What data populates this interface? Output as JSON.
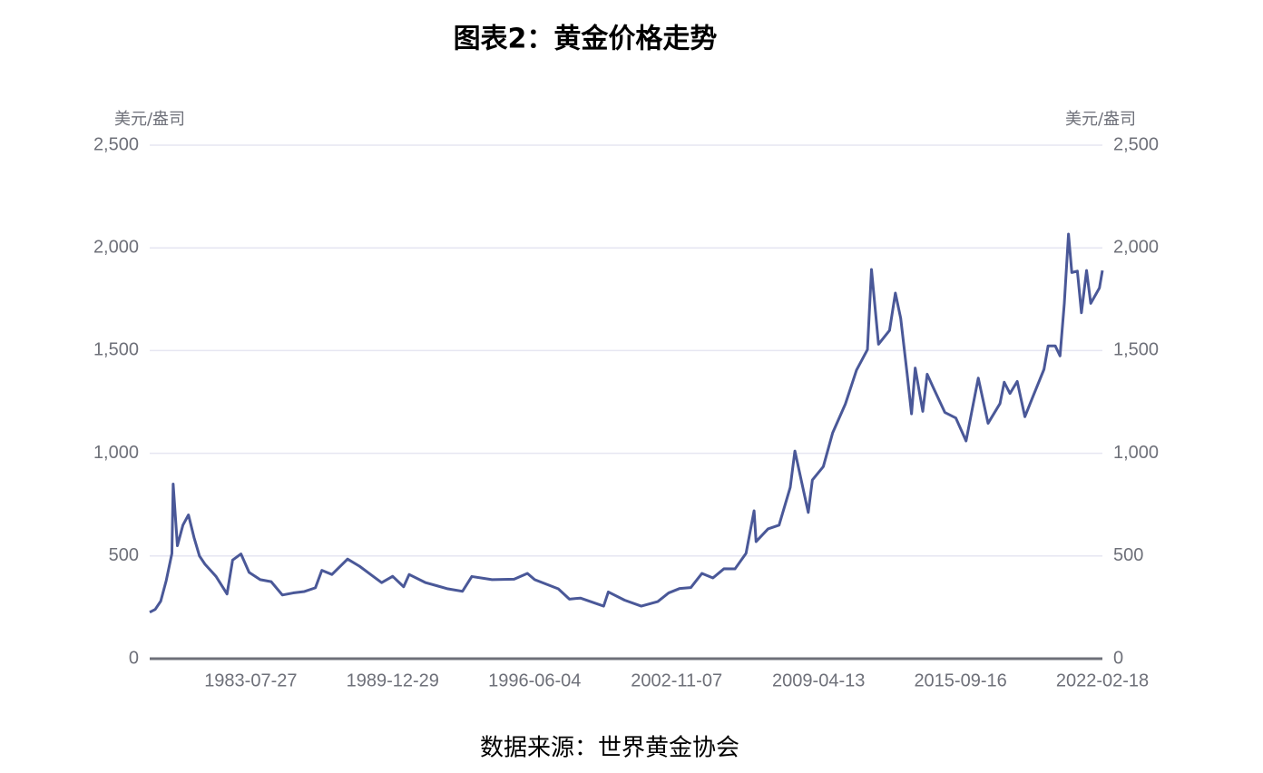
{
  "chart_data": {
    "type": "line",
    "title": "图表2：黄金价格走势",
    "y_label": "美元/盎司",
    "y2_label": "美元/盎司",
    "source": "数据来源：世界黄金协会",
    "x": [
      "1978-12-29",
      "1979-03-30",
      "1979-06-29",
      "1979-09-28",
      "1979-12-31",
      "1980-01-21",
      "1980-03-31",
      "1980-06-30",
      "1980-09-30",
      "1980-12-31",
      "1981-03-31",
      "1981-06-30",
      "1981-09-30",
      "1981-12-31",
      "1982-06-30",
      "1982-09-30",
      "1983-02-15",
      "1983-06-30",
      "1983-12-30",
      "1984-06-29",
      "1984-12-31",
      "1985-06-28",
      "1985-12-31",
      "1986-06-30",
      "1986-10-15",
      "1987-03-31",
      "1987-12-14",
      "1988-06-30",
      "1988-12-30",
      "1989-06-30",
      "1989-12-29",
      "1990-06-29",
      "1990-09-28",
      "1991-06-28",
      "1991-12-31",
      "1992-06-30",
      "1993-02-26",
      "1993-07-30",
      "1994-06-30",
      "1995-06-30",
      "1996-02-05",
      "1996-06-04",
      "1997-06-30",
      "1997-12-31",
      "1998-06-30",
      "1999-07-20",
      "1999-10-05",
      "2000-06-30",
      "2001-04-02",
      "2001-12-31",
      "2002-06-28",
      "2002-12-31",
      "2003-06-30",
      "2003-12-31",
      "2004-06-30",
      "2004-12-31",
      "2005-06-30",
      "2005-12-30",
      "2006-05-12",
      "2006-06-14",
      "2006-12-29",
      "2007-06-29",
      "2007-12-31",
      "2008-03-17",
      "2008-10-24",
      "2008-12-31",
      "2009-06-30",
      "2009-12-02",
      "2010-06-30",
      "2010-12-31",
      "2011-06-30",
      "2011-09-05",
      "2011-12-30",
      "2012-06-29",
      "2012-10-04",
      "2012-12-31",
      "2013-04-15",
      "2013-06-28",
      "2013-08-28",
      "2013-12-31",
      "2014-03-14",
      "2014-06-30",
      "2014-12-31",
      "2015-06-30",
      "2015-12-17",
      "2016-07-06",
      "2016-12-15",
      "2017-06-30",
      "2017-09-08",
      "2017-12-12",
      "2018-04-11",
      "2018-08-16",
      "2018-12-31",
      "2019-06-28",
      "2019-09-04",
      "2019-12-31",
      "2020-03-19",
      "2020-05-29",
      "2020-08-06",
      "2020-09-30",
      "2020-12-31",
      "2021-03-08",
      "2021-06-01",
      "2021-08-09",
      "2021-12-31",
      "2022-02-18"
    ],
    "series": [
      {
        "name": "黄金价格",
        "color": "#4a5898",
        "values": [
          226,
          240,
          280,
          380,
          512,
          850,
          550,
          650,
          700,
          590,
          500,
          460,
          430,
          400,
          315,
          480,
          510,
          420,
          385,
          375,
          310,
          320,
          327,
          345,
          430,
          410,
          485,
          450,
          410,
          370,
          401,
          350,
          410,
          370,
          355,
          340,
          328,
          400,
          385,
          387,
          415,
          385,
          340,
          290,
          295,
          256,
          325,
          285,
          256,
          278,
          320,
          342,
          346,
          415,
          393,
          438,
          437,
          513,
          720,
          570,
          632,
          650,
          834,
          1011,
          712,
          870,
          935,
          1100,
          1240,
          1405,
          1505,
          1895,
          1531,
          1598,
          1780,
          1657,
          1390,
          1192,
          1415,
          1204,
          1385,
          1315,
          1199,
          1172,
          1060,
          1366,
          1146,
          1242,
          1346,
          1291,
          1350,
          1178,
          1279,
          1409,
          1523,
          1523,
          1474,
          1730,
          2067,
          1880,
          1887,
          1684,
          1890,
          1730,
          1805,
          1890
        ]
      }
    ],
    "xlim": [
      "1978-12-29",
      "2022-02-18"
    ],
    "xticks": [
      "1983-07-27",
      "1989-12-29",
      "1996-06-04",
      "2002-11-07",
      "2009-04-13",
      "2015-09-16",
      "2022-02-18"
    ],
    "ylim": [
      0,
      2500
    ],
    "yticks": [
      0,
      500,
      {
        "value": 1000,
        "label": "1,000"
      },
      {
        "value": 1500,
        "label": "1,500"
      },
      {
        "value": 2000,
        "label": "2,000"
      },
      {
        "value": 2500,
        "label": "2,500"
      }
    ],
    "y2lim": [
      0,
      2500
    ],
    "y2ticks": [
      0,
      500,
      {
        "value": 1000,
        "label": "1,000"
      },
      {
        "value": 1500,
        "label": "1,500"
      },
      {
        "value": 2000,
        "label": "2,000"
      },
      {
        "value": 2500,
        "label": "2,500"
      }
    ],
    "grid": true
  }
}
